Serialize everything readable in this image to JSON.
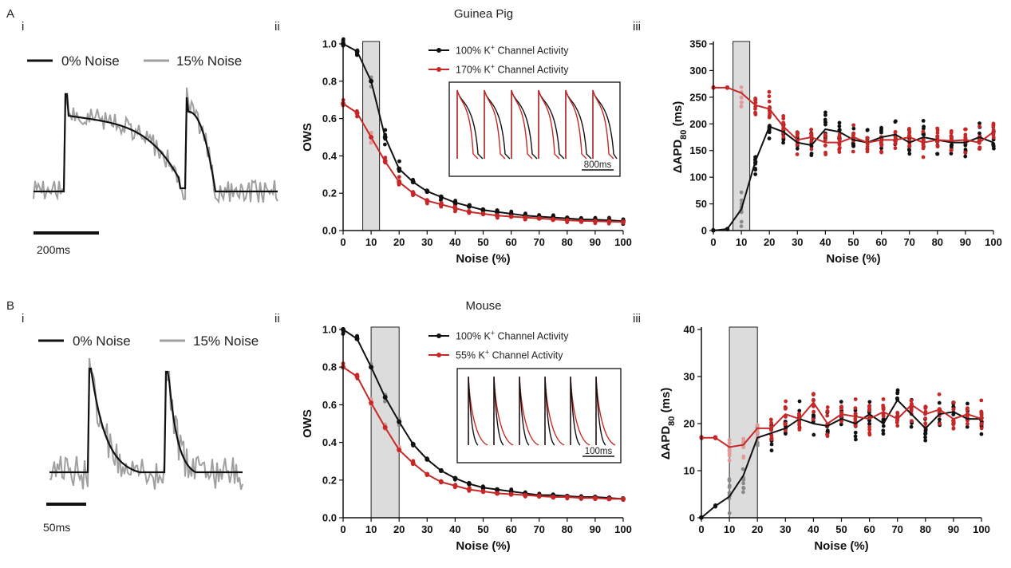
{
  "colors": {
    "black": "#111111",
    "red": "#c62828",
    "grey": "#a0a0a0",
    "shade": "#dcdcdc"
  },
  "panel_labels": {
    "a": "A",
    "b": "B",
    "ai": "i",
    "aii": "ii",
    "aiii": "iii",
    "bi": "i",
    "bii": "ii",
    "biii": "iii"
  },
  "titles": {
    "a": "Guinea Pig",
    "b": "Mouse"
  },
  "traces": {
    "a": {
      "legend": [
        "0% Noise",
        "15% Noise"
      ],
      "scalebar": "200ms"
    },
    "b": {
      "legend": [
        "0% Noise",
        "15% Noise"
      ],
      "scalebar": "50ms"
    }
  },
  "insets": {
    "a": {
      "scalebar": "800ms"
    },
    "b": {
      "scalebar": "100ms"
    }
  },
  "chart_data": [
    {
      "type": "line",
      "panel": "A ii",
      "title": "Guinea Pig",
      "xlabel": "Noise (%)",
      "ylabel": "OWS",
      "xlim": [
        0,
        100
      ],
      "ylim": [
        0,
        1.0
      ],
      "xticks": [
        "0",
        "10",
        "20",
        "30",
        "40",
        "50",
        "60",
        "70",
        "80",
        "90",
        "100"
      ],
      "yticks": [
        "0.0",
        "0.2",
        "0.4",
        "0.6",
        "0.8",
        "1.0"
      ],
      "shaded_x": [
        7,
        13
      ],
      "x": [
        0,
        5,
        10,
        15,
        20,
        25,
        30,
        35,
        40,
        45,
        50,
        55,
        60,
        65,
        70,
        75,
        80,
        85,
        90,
        95,
        100
      ],
      "series": [
        {
          "name": "100% K+ Channel Activity",
          "name_sup": "+",
          "name_pre": "100% K",
          "name_post": " Channel Activity",
          "color": "black",
          "values": [
            1.0,
            0.96,
            0.8,
            0.5,
            0.33,
            0.26,
            0.21,
            0.18,
            0.15,
            0.13,
            0.11,
            0.1,
            0.09,
            0.08,
            0.075,
            0.07,
            0.065,
            0.06,
            0.058,
            0.055,
            0.05
          ]
        },
        {
          "name": "170% K+ Channel Activity",
          "name_sup": "+",
          "name_pre": "170% K",
          "name_post": " Channel Activity",
          "color": "red",
          "values": [
            0.68,
            0.63,
            0.5,
            0.37,
            0.26,
            0.2,
            0.16,
            0.14,
            0.12,
            0.1,
            0.09,
            0.08,
            0.075,
            0.07,
            0.065,
            0.06,
            0.055,
            0.052,
            0.05,
            0.048,
            0.046
          ]
        }
      ]
    },
    {
      "type": "scatter",
      "panel": "A iii",
      "xlabel": "Noise (%)",
      "ylabel": "ΔAPD80 (ms)",
      "ylabel_main": "ΔAPD",
      "ylabel_sub": "80",
      "ylabel_unit": " (ms)",
      "xlim": [
        0,
        100
      ],
      "ylim": [
        0,
        350
      ],
      "xticks": [
        "0",
        "10",
        "20",
        "30",
        "40",
        "50",
        "60",
        "70",
        "80",
        "90",
        "100"
      ],
      "yticks": [
        "0",
        "50",
        "100",
        "150",
        "200",
        "250",
        "300",
        "350"
      ],
      "shaded_x": [
        7,
        13
      ],
      "x": [
        0,
        5,
        10,
        15,
        20,
        25,
        30,
        35,
        40,
        45,
        50,
        55,
        60,
        65,
        70,
        75,
        80,
        85,
        90,
        95,
        100
      ],
      "series": [
        {
          "name": "100% K+ Channel Activity",
          "color": "black",
          "values": [
            0,
            3,
            40,
            130,
            195,
            185,
            165,
            160,
            190,
            185,
            170,
            165,
            175,
            180,
            165,
            175,
            170,
            165,
            165,
            175,
            165
          ]
        },
        {
          "name": "170% K+ Channel Activity",
          "color": "red",
          "values": [
            268,
            268,
            258,
            235,
            228,
            195,
            170,
            175,
            165,
            165,
            175,
            165,
            170,
            170,
            175,
            165,
            170,
            168,
            170,
            165,
            185
          ]
        }
      ]
    },
    {
      "type": "line",
      "panel": "B ii",
      "title": "Mouse",
      "xlabel": "Noise (%)",
      "ylabel": "OWS",
      "xlim": [
        0,
        100
      ],
      "ylim": [
        0,
        1.0
      ],
      "xticks": [
        "0",
        "10",
        "20",
        "30",
        "40",
        "50",
        "60",
        "70",
        "80",
        "90",
        "100"
      ],
      "yticks": [
        "0.0",
        "0.2",
        "0.4",
        "0.6",
        "0.8",
        "1.0"
      ],
      "shaded_x": [
        10,
        20
      ],
      "x": [
        0,
        5,
        10,
        15,
        20,
        25,
        30,
        35,
        40,
        45,
        50,
        55,
        60,
        65,
        70,
        75,
        80,
        85,
        90,
        95,
        100
      ],
      "series": [
        {
          "name": "100% K+ Channel Activity",
          "name_pre": "100% K",
          "name_sup": "+",
          "name_post": " Channel Activity",
          "color": "black",
          "values": [
            1.0,
            0.95,
            0.8,
            0.64,
            0.51,
            0.39,
            0.31,
            0.25,
            0.21,
            0.18,
            0.16,
            0.15,
            0.14,
            0.13,
            0.12,
            0.12,
            0.115,
            0.11,
            0.11,
            0.105,
            0.1
          ]
        },
        {
          "name": "55% K+ Channel Activity",
          "name_pre": "55% K",
          "name_sup": "+",
          "name_post": " Channel Activity",
          "color": "red",
          "values": [
            0.8,
            0.75,
            0.61,
            0.48,
            0.36,
            0.29,
            0.23,
            0.19,
            0.17,
            0.15,
            0.14,
            0.13,
            0.125,
            0.12,
            0.115,
            0.11,
            0.11,
            0.105,
            0.105,
            0.1,
            0.1
          ]
        }
      ]
    },
    {
      "type": "scatter",
      "panel": "B iii",
      "xlabel": "Noise (%)",
      "ylabel": "ΔAPD80 (ms)",
      "ylabel_main": "ΔAPD",
      "ylabel_sub": "80",
      "ylabel_unit": " (ms)",
      "xlim": [
        0,
        100
      ],
      "ylim": [
        0,
        40
      ],
      "xticks": [
        "0",
        "10",
        "20",
        "30",
        "40",
        "50",
        "60",
        "70",
        "80",
        "90",
        "100"
      ],
      "yticks": [
        "0",
        "10",
        "20",
        "30",
        "40"
      ],
      "shaded_x": [
        10,
        20
      ],
      "x": [
        0,
        5,
        10,
        15,
        20,
        25,
        30,
        35,
        40,
        45,
        50,
        55,
        60,
        65,
        70,
        75,
        80,
        85,
        90,
        95,
        100
      ],
      "series": [
        {
          "name": "100% K+ Channel Activity",
          "color": "black",
          "values": [
            0,
            2.5,
            4.5,
            9,
            17,
            18,
            19,
            21,
            20,
            19.5,
            21,
            20,
            22,
            20,
            25,
            22,
            19,
            22,
            22.5,
            21,
            21
          ]
        },
        {
          "name": "55% K+ Channel Activity",
          "color": "red",
          "values": [
            17,
            17,
            15,
            15.5,
            19,
            19,
            22,
            21,
            24.5,
            20,
            22,
            21.5,
            21,
            22.5,
            21,
            24,
            22,
            23,
            21,
            22,
            21
          ]
        }
      ]
    }
  ]
}
